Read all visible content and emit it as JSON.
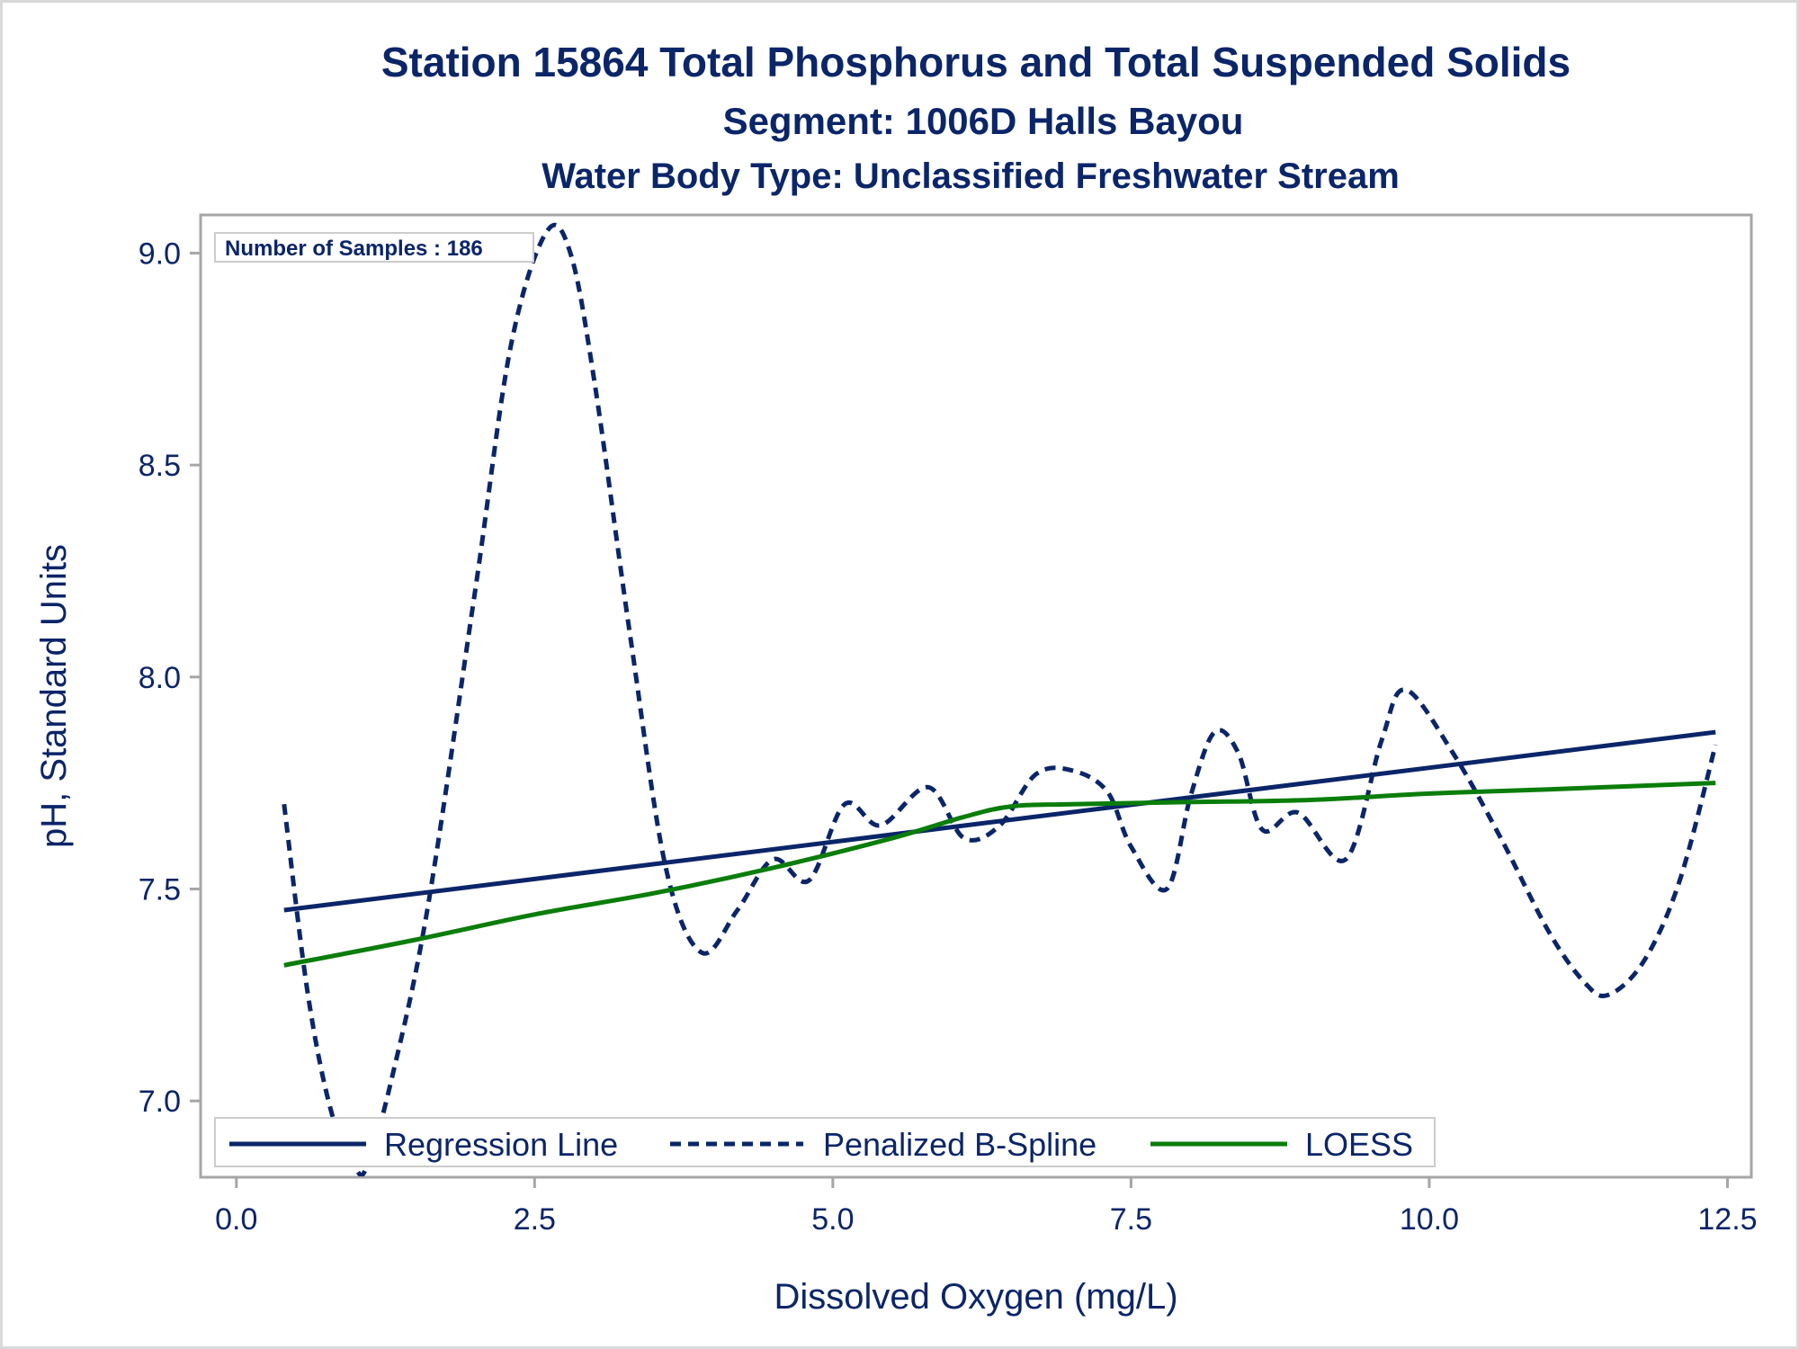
{
  "chart_data": {
    "type": "line",
    "title": "Station 15864  Total Phosphorus and Total Suspended Solids",
    "subtitle": "Segment: 1006D  Halls Bayou",
    "subtitle2": "Water Body Type: Unclassified Freshwater Stream",
    "xlabel": "Dissolved Oxygen (mg/L)",
    "ylabel": "pH, Standard Units",
    "xlim": [
      -0.3,
      12.7
    ],
    "ylim": [
      6.82,
      9.09
    ],
    "x_ticks": [
      0.0,
      2.5,
      5.0,
      7.5,
      10.0,
      12.5
    ],
    "x_tick_labels": [
      "0.0",
      "2.5",
      "5.0",
      "7.5",
      "10.0",
      "12.5"
    ],
    "y_ticks": [
      7.0,
      7.5,
      8.0,
      8.5,
      9.0
    ],
    "y_tick_labels": [
      "7.0",
      "7.5",
      "8.0",
      "8.5",
      "9.0"
    ],
    "grid": false,
    "inset_label": "Number of Samples : 186",
    "legend": {
      "position": "bottom-left-inside"
    },
    "colors": {
      "regression": "#0b2569",
      "spline": "#0b2569",
      "loess": "#0a7d0a",
      "text": "#0b2569",
      "frame": "#a6a6a6"
    },
    "series": [
      {
        "name": "Regression Line",
        "style": "solid",
        "x": [
          0.4,
          12.4
        ],
        "y": [
          7.45,
          7.87
        ]
      },
      {
        "name": "Penalized B-Spline",
        "style": "dashed",
        "x": [
          0.4,
          0.6,
          0.8,
          1.0,
          1.1,
          1.3,
          1.6,
          2.0,
          2.3,
          2.6,
          2.8,
          3.0,
          3.3,
          3.6,
          3.9,
          4.2,
          4.5,
          4.8,
          5.1,
          5.4,
          5.8,
          6.1,
          6.4,
          6.7,
          7.0,
          7.3,
          7.5,
          7.8,
          8.0,
          8.2,
          8.4,
          8.6,
          8.9,
          9.3,
          9.6,
          9.8,
          10.2,
          10.6,
          11.0,
          11.3,
          11.5,
          11.8,
          12.1,
          12.4
        ],
        "y": [
          7.7,
          7.25,
          6.97,
          6.84,
          6.85,
          7.05,
          7.45,
          8.2,
          8.78,
          9.05,
          9.0,
          8.7,
          8.1,
          7.55,
          7.35,
          7.45,
          7.57,
          7.52,
          7.7,
          7.65,
          7.74,
          7.62,
          7.65,
          7.77,
          7.78,
          7.73,
          7.6,
          7.5,
          7.72,
          7.87,
          7.82,
          7.64,
          7.68,
          7.57,
          7.85,
          7.97,
          7.82,
          7.62,
          7.4,
          7.28,
          7.25,
          7.33,
          7.52,
          7.84
        ]
      },
      {
        "name": "LOESS",
        "style": "solid",
        "x": [
          0.4,
          1.5,
          2.5,
          3.5,
          4.5,
          5.5,
          6.1,
          6.5,
          7.0,
          8.0,
          9.0,
          10.0,
          11.0,
          12.4
        ],
        "y": [
          7.32,
          7.38,
          7.44,
          7.49,
          7.55,
          7.62,
          7.67,
          7.695,
          7.7,
          7.705,
          7.71,
          7.725,
          7.735,
          7.75
        ]
      }
    ]
  }
}
